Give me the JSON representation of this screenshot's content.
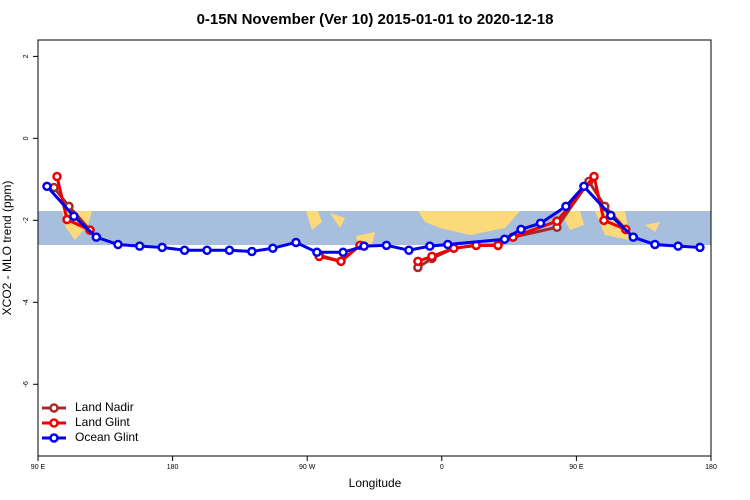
{
  "chart_data": {
    "type": "line",
    "title": "0-15N November (Ver 10)   2015-01-01 to 2020-12-18",
    "x_label": "Longitude",
    "y_label": "XCO2 - MLO trend (ppm)",
    "xlim": [
      90,
      540
    ],
    "ylim": [
      -7.75,
      2.4
    ],
    "xticks": [
      {
        "value": 90,
        "label": "90 E"
      },
      180,
      {
        "value": 270,
        "label": "90 W"
      },
      {
        "value": 360,
        "label": "0"
      },
      {
        "value": 450,
        "label": "90 E"
      },
      {
        "value": 540,
        "label": "180"
      }
    ],
    "yticks": [
      -6,
      -4,
      -2,
      0,
      2
    ],
    "legend": "bottom-left",
    "series": [
      {
        "name": "Land Nadir",
        "color": "#a52a2a",
        "x": [
          100.7,
          110.7,
          124.8,
          null,
          278,
          292.6,
          305.3,
          null,
          344,
          353.4,
          368,
          383,
          397.6,
          407.6,
          437,
          458.4,
          469,
          483
        ],
        "values": [
          -1.2,
          -1.66,
          -2.24,
          null,
          -2.85,
          -3.0,
          -2.61,
          null,
          -3.15,
          -2.93,
          -2.68,
          -2.61,
          -2.61,
          -2.41,
          -2.17,
          -1.05,
          -1.66,
          -2.22
        ]
      },
      {
        "name": "Land Glint",
        "color": "#ee0000",
        "x": [
          102.7,
          109.4,
          124.8,
          null,
          278,
          292.6,
          305.3,
          null,
          344,
          353.4,
          368,
          383,
          397.6,
          407.6,
          437,
          461.8,
          468.4,
          483
        ],
        "values": [
          -0.93,
          -1.98,
          -2.24,
          null,
          -2.88,
          -3.0,
          -2.61,
          null,
          -3.0,
          -2.88,
          -2.68,
          -2.61,
          -2.61,
          -2.41,
          -2.02,
          -0.93,
          -2.0,
          -2.22
        ]
      },
      {
        "name": "Ocean Glint",
        "color": "#0000ee",
        "x": [
          96,
          114,
          129,
          143.5,
          158,
          173,
          188,
          203,
          218,
          233,
          247,
          262.5,
          276.5,
          294,
          308,
          323,
          338,
          352,
          364,
          402,
          413,
          426,
          443,
          455,
          473,
          488,
          502.5,
          518,
          532.6
        ],
        "values": [
          -1.17,
          -1.9,
          -2.41,
          -2.59,
          -2.63,
          -2.66,
          -2.73,
          -2.73,
          -2.73,
          -2.76,
          -2.68,
          -2.54,
          -2.78,
          -2.78,
          -2.63,
          -2.61,
          -2.73,
          -2.63,
          -2.59,
          -2.46,
          -2.22,
          -2.07,
          -1.66,
          -1.17,
          -1.88,
          -2.41,
          -2.59,
          -2.63,
          -2.66
        ]
      }
    ]
  }
}
